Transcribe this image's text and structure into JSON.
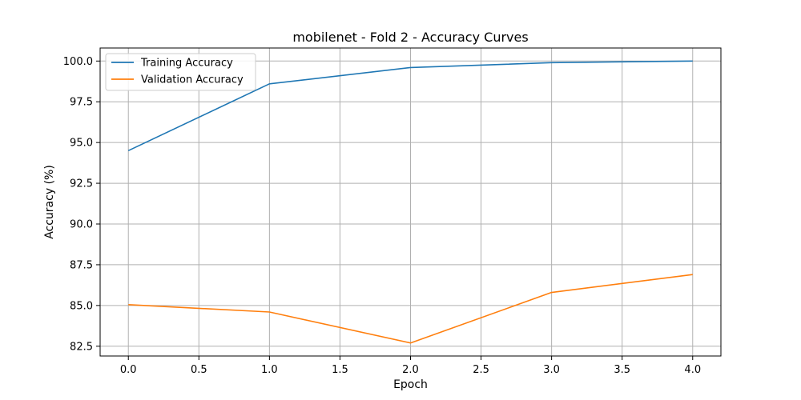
{
  "chart_data": {
    "type": "line",
    "title": "mobilenet - Fold 2 - Accuracy Curves",
    "xlabel": "Epoch",
    "ylabel": "Accuracy (%)",
    "x": [
      0,
      1,
      2,
      3,
      4
    ],
    "xlim": [
      -0.2,
      4.2
    ],
    "ylim": [
      81.9,
      100.8
    ],
    "xticks": [
      "0.0",
      "0.5",
      "1.0",
      "1.5",
      "2.0",
      "2.5",
      "3.0",
      "3.5",
      "4.0"
    ],
    "yticks": [
      "82.5",
      "85.0",
      "87.5",
      "90.0",
      "92.5",
      "95.0",
      "97.5",
      "100.0"
    ],
    "grid": true,
    "legend_position": "upper-left",
    "series": [
      {
        "name": "Training Accuracy",
        "color": "#1f77b4",
        "values": [
          94.5,
          98.6,
          99.6,
          99.9,
          100.0
        ]
      },
      {
        "name": "Validation Accuracy",
        "color": "#ff7f0e",
        "values": [
          85.05,
          84.6,
          82.7,
          85.8,
          86.9
        ]
      }
    ]
  }
}
